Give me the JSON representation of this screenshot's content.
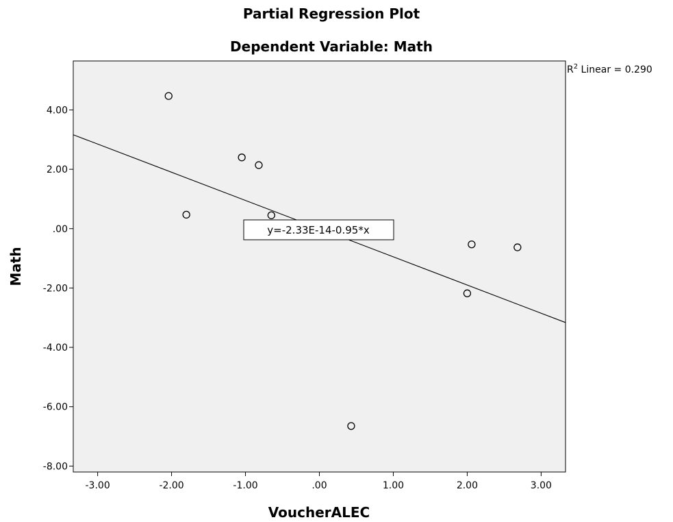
{
  "chart_data": {
    "type": "scatter",
    "title": "Partial Regression Plot",
    "subtitle": "Dependent Variable: Math",
    "xlabel": "VoucherALEC",
    "ylabel": "Math",
    "xlim": [
      -3.33,
      3.33
    ],
    "ylim": [
      -8.2,
      5.65
    ],
    "xticks": [
      -3,
      -2,
      -1,
      0,
      1,
      2,
      3
    ],
    "xtick_labels": [
      "-3.00",
      "-2.00",
      "-1.00",
      ".00",
      "1.00",
      "2.00",
      "3.00"
    ],
    "yticks": [
      4,
      2,
      0,
      -2,
      -4,
      -6,
      -8
    ],
    "ytick_labels": [
      "4.00",
      "2.00",
      ".00",
      "-2.00",
      "-4.00",
      "-6.00",
      "-8.00"
    ],
    "points": [
      {
        "x": -2.04,
        "y": 4.47
      },
      {
        "x": -1.8,
        "y": 0.47
      },
      {
        "x": -1.05,
        "y": 2.4
      },
      {
        "x": -0.82,
        "y": 2.14
      },
      {
        "x": -0.65,
        "y": 0.45
      },
      {
        "x": 0.43,
        "y": -6.65
      },
      {
        "x": 2.0,
        "y": -2.18
      },
      {
        "x": 2.06,
        "y": -0.53
      },
      {
        "x": 2.68,
        "y": -0.63
      }
    ],
    "fit_line": {
      "intercept": -2.33e-14,
      "slope": -0.95
    },
    "fit_equation": "y=-2.33E-14-0.95*x",
    "r2_prefix": "R",
    "r2_sup": "2",
    "r2_text": " Linear = 0.290",
    "grid": false,
    "plot_background": "#f0f0f0",
    "marker_color": "#000000"
  }
}
